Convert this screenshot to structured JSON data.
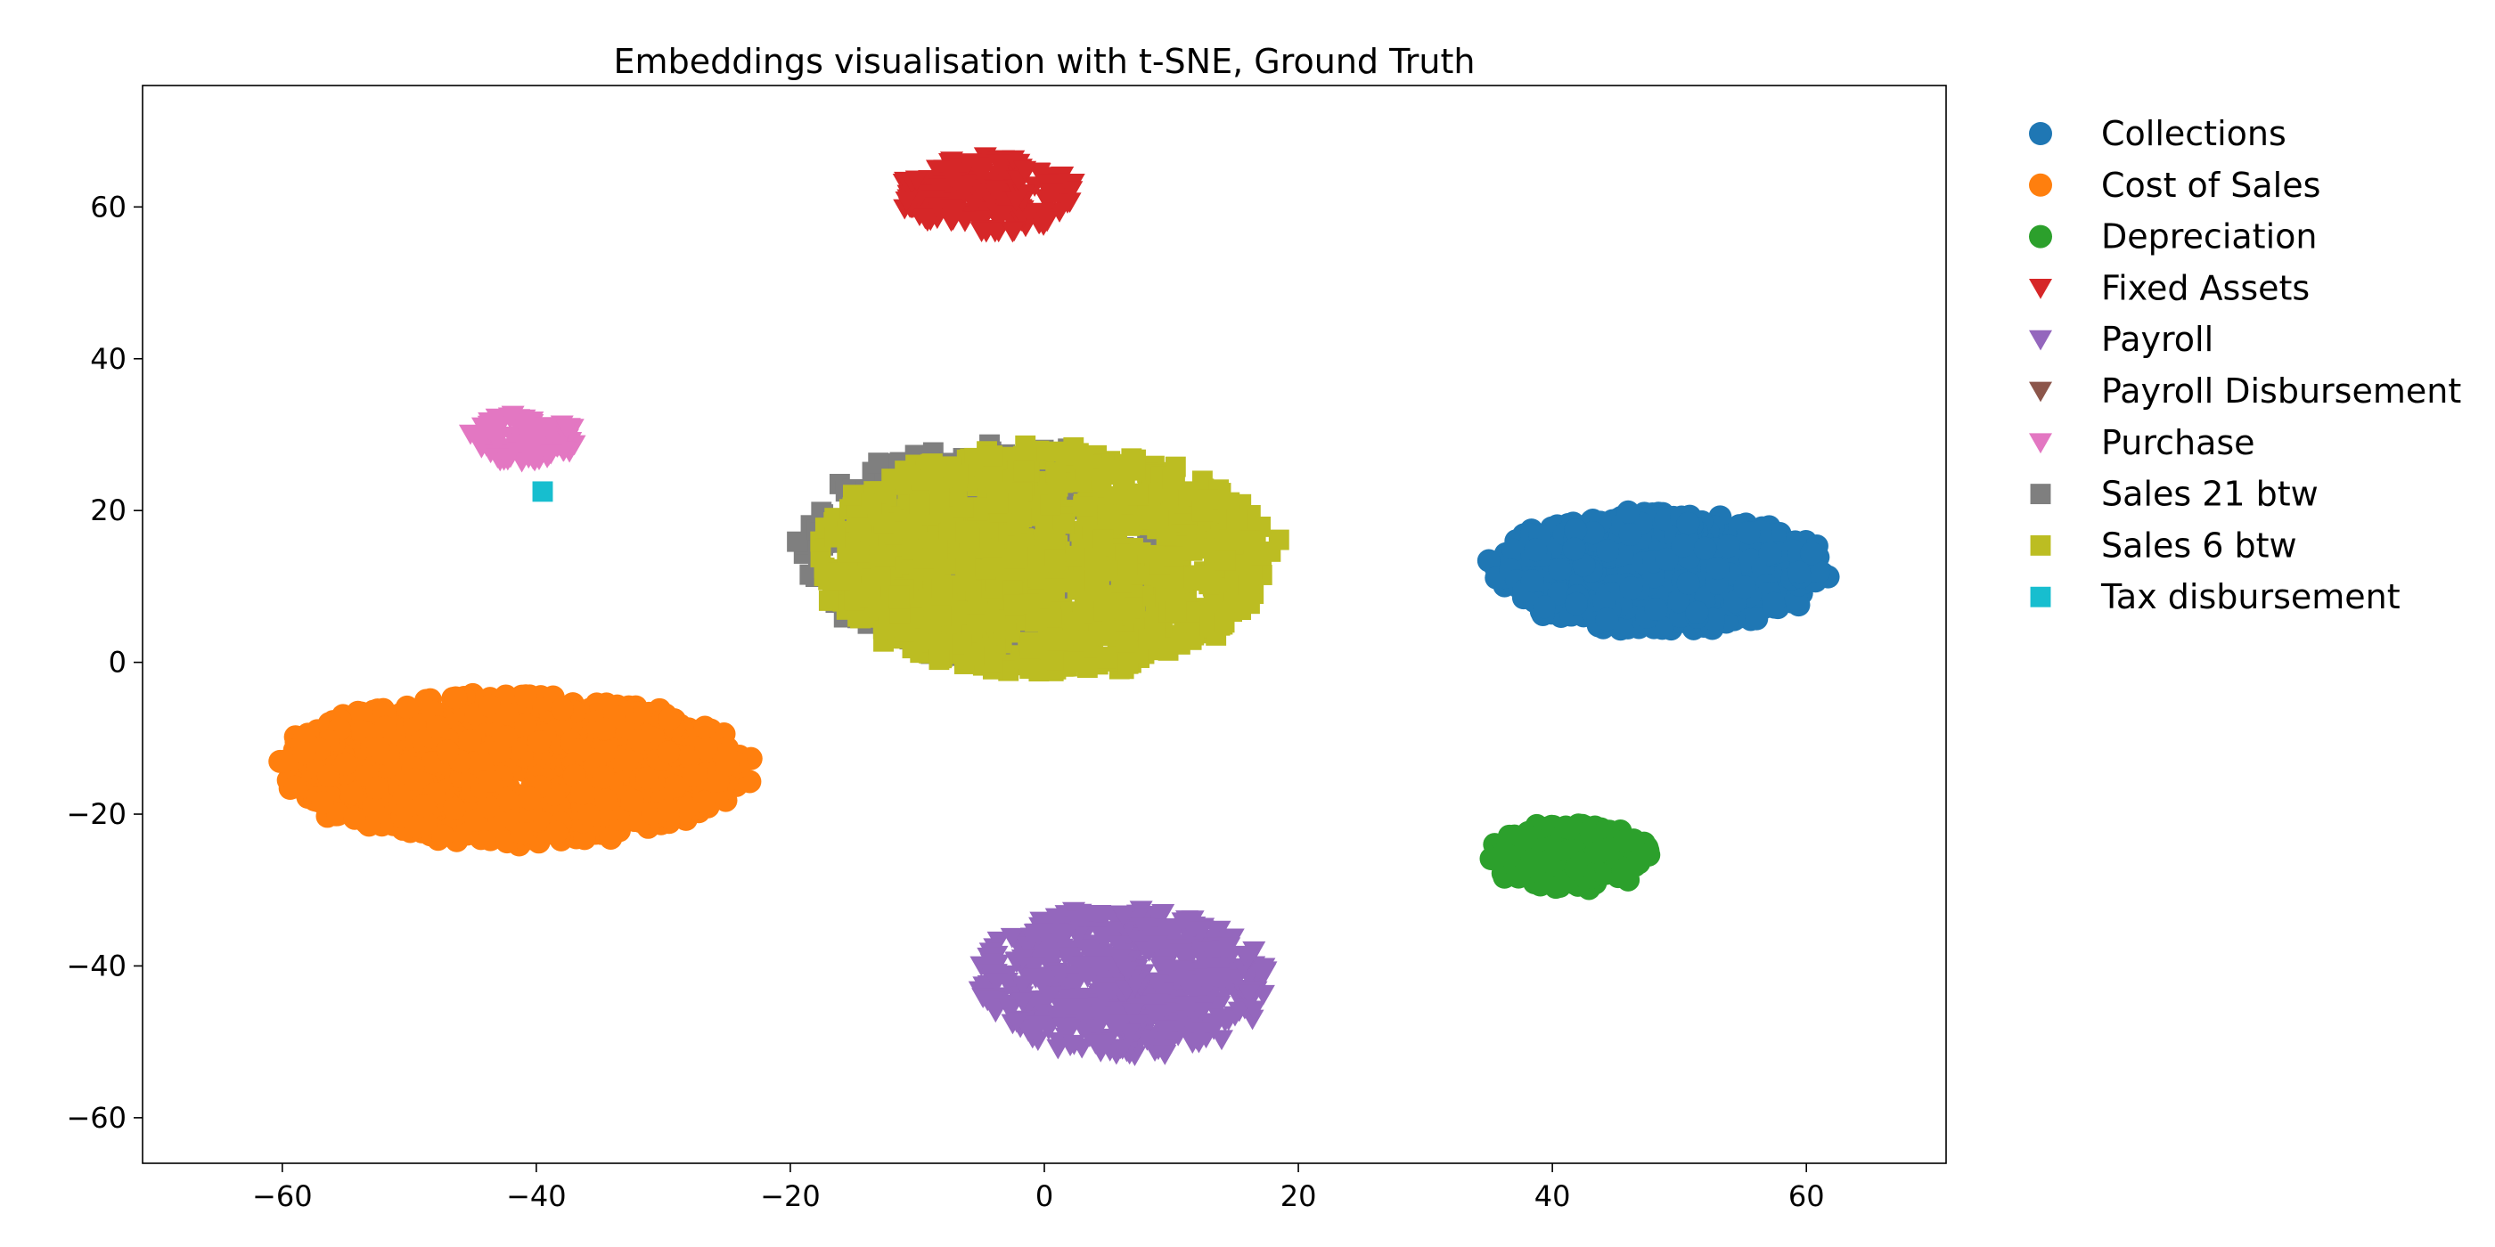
{
  "chart_data": {
    "type": "scatter",
    "title": "Embeddings visualisation with t-SNE, Ground Truth",
    "xlabel": "",
    "ylabel": "",
    "xlim": [
      -71,
      71
    ],
    "ylim": [
      -66,
      76
    ],
    "xticks": [
      -60,
      -40,
      -20,
      0,
      20,
      40,
      60
    ],
    "yticks": [
      -60,
      -40,
      -20,
      0,
      20,
      40,
      60
    ],
    "xtick_labels": [
      "−60",
      "−40",
      "−20",
      "0",
      "20",
      "40",
      "60"
    ],
    "ytick_labels": [
      "−60",
      "−40",
      "−20",
      "0",
      "20",
      "40",
      "60"
    ],
    "grid": false,
    "legend_position": "outside-right",
    "series": [
      {
        "name": "Collections",
        "color": "#1f77b4",
        "marker": "circle",
        "cluster": {
          "center": [
            48.5,
            12
          ],
          "spread": [
            14.5,
            8.5
          ],
          "count": 700
        }
      },
      {
        "name": "Cost of Sales",
        "color": "#ff7f0e",
        "marker": "circle",
        "cluster": {
          "center": [
            -42,
            -14
          ],
          "spread": [
            20,
            10.5
          ],
          "count": 1100
        }
      },
      {
        "name": "Depreciation",
        "color": "#2ca02c",
        "marker": "circle",
        "cluster": {
          "center": [
            41.5,
            -25.5
          ],
          "spread": [
            7,
            4.8
          ],
          "count": 220
        }
      },
      {
        "name": "Fixed Assets",
        "color": "#d62728",
        "marker": "triangle-down",
        "cluster": {
          "center": [
            -4.5,
            61.5
          ],
          "spread": [
            7.6,
            5.5
          ],
          "count": 200
        }
      },
      {
        "name": "Payroll",
        "color": "#9467bd",
        "marker": "triangle-down",
        "cluster": {
          "center": [
            6,
            -42
          ],
          "spread": [
            12.5,
            10.5
          ],
          "count": 550
        }
      },
      {
        "name": "Payroll Disbursement",
        "color": "#8c564b",
        "marker": "triangle-down",
        "cluster": {
          "center": [
            0,
            0
          ],
          "spread": [
            0,
            0
          ],
          "count": 0
        }
      },
      {
        "name": "Purchase",
        "color": "#e377c2",
        "marker": "triangle-down",
        "cluster": {
          "center": [
            -41,
            29.5
          ],
          "spread": [
            4.7,
            3.5
          ],
          "count": 90
        }
      },
      {
        "name": "Sales 21 btw",
        "color": "#7f7f7f",
        "marker": "square",
        "cluster": {
          "center": [
            -4,
            14.5
          ],
          "spread": [
            16.5,
            15.5
          ],
          "count": 320
        }
      },
      {
        "name": "Sales 6 btw",
        "color": "#bcbd22",
        "marker": "square",
        "cluster": {
          "center": [
            0,
            13.5
          ],
          "spread": [
            19.5,
            16
          ],
          "count": 950
        }
      },
      {
        "name": "Tax disbursement",
        "color": "#17becf",
        "marker": "square",
        "cluster": {
          "center": [
            -39.5,
            22.5
          ],
          "spread": [
            0,
            0
          ],
          "count": 1
        }
      }
    ]
  }
}
